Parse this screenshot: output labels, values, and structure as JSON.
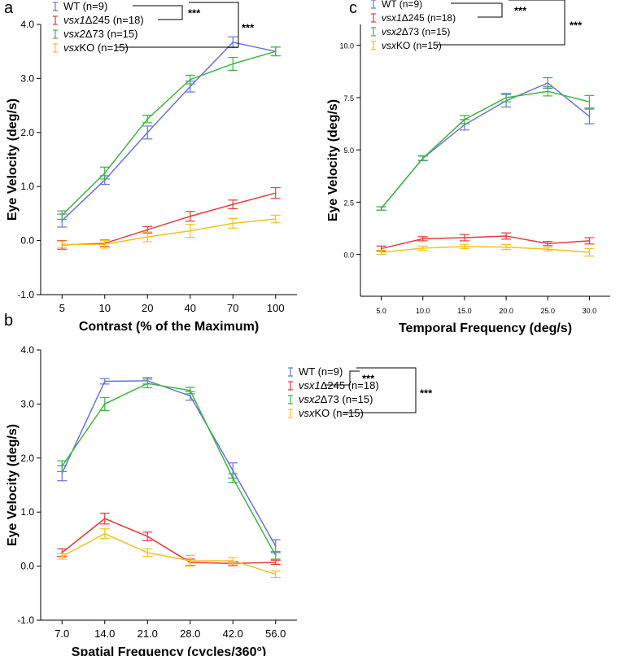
{
  "colors": {
    "WT": "#6673e0",
    "vsx1": "#e53b3b",
    "vsx2": "#3fb53f",
    "vsxKO": "#f3c21f"
  },
  "legend": {
    "items": [
      {
        "key": "WT",
        "prefix": "",
        "italic": "",
        "suffix": "WT (n=9)"
      },
      {
        "key": "vsx1",
        "prefix": "",
        "italic": "vsx1",
        "suffix": "Δ245 (n=18)"
      },
      {
        "key": "vsx2",
        "prefix": "",
        "italic": "vsx2",
        "suffix": "Δ73 (n=15)"
      },
      {
        "key": "vsxKO",
        "prefix": "",
        "italic": "vsx",
        "suffix": "KO (n=15)"
      }
    ],
    "significance": "***"
  },
  "chart_data": [
    {
      "panel": "a",
      "type": "line",
      "xlabel": "Contrast (% of the Maximum)",
      "ylabel": "Eye Velocity (deg/s)",
      "categories": [
        "5",
        "10",
        "20",
        "40",
        "70",
        "100"
      ],
      "yticks": [
        "-1.0",
        "0.0",
        "1.0",
        "2.0",
        "3.0",
        "4.0"
      ],
      "ylim": [
        -1.0,
        4.0
      ],
      "grid": false,
      "legend_position": "top-left",
      "series": [
        {
          "name": "WT",
          "values": [
            0.37,
            1.12,
            2.0,
            2.85,
            3.67,
            3.5
          ],
          "err": [
            0.12,
            0.08,
            0.12,
            0.1,
            0.1,
            0.08
          ]
        },
        {
          "name": "vsx1Δ245",
          "values": [
            -0.08,
            -0.05,
            0.2,
            0.45,
            0.67,
            0.88
          ],
          "err": [
            0.08,
            0.06,
            0.06,
            0.09,
            0.08,
            0.1
          ]
        },
        {
          "name": "vsx2Δ73",
          "values": [
            0.47,
            1.25,
            2.25,
            2.98,
            3.27,
            3.5
          ],
          "err": [
            0.08,
            0.11,
            0.07,
            0.08,
            0.12,
            0.08
          ]
        },
        {
          "name": "vsxKO",
          "values": [
            -0.07,
            -0.07,
            0.07,
            0.18,
            0.32,
            0.4
          ],
          "err": [
            0.06,
            0.07,
            0.09,
            0.12,
            0.09,
            0.07
          ]
        }
      ]
    },
    {
      "panel": "b",
      "type": "line",
      "xlabel": "Spatial Frequency (cycles/360°)",
      "ylabel": "Eye Velocity (deg/s)",
      "categories": [
        "7.0",
        "14.0",
        "21.0",
        "28.0",
        "42.0",
        "56.0"
      ],
      "yticks": [
        "-1.0",
        "0.0",
        "1.0",
        "2.0",
        "3.0",
        "4.0"
      ],
      "ylim": [
        -1.0,
        4.0
      ],
      "grid": false,
      "legend_position": "top-right",
      "series": [
        {
          "name": "WT",
          "values": [
            1.72,
            3.42,
            3.43,
            3.15,
            1.77,
            0.37
          ],
          "err": [
            0.14,
            0.05,
            0.06,
            0.08,
            0.14,
            0.12
          ]
        },
        {
          "name": "vsx1Δ245",
          "values": [
            0.25,
            0.88,
            0.55,
            0.07,
            0.05,
            0.07
          ],
          "err": [
            0.07,
            0.1,
            0.08,
            0.06,
            0.04,
            0.04
          ]
        },
        {
          "name": "vsx2Δ73",
          "values": [
            1.85,
            3.0,
            3.38,
            3.25,
            1.63,
            0.2
          ],
          "err": [
            0.1,
            0.12,
            0.08,
            0.06,
            0.08,
            0.07
          ]
        },
        {
          "name": "vsxKO",
          "values": [
            0.18,
            0.6,
            0.25,
            0.1,
            0.1,
            -0.15
          ],
          "err": [
            0.05,
            0.09,
            0.07,
            0.1,
            0.06,
            0.06
          ]
        }
      ]
    },
    {
      "panel": "c",
      "type": "line",
      "xlabel": "Temporal Frequency (deg/s)",
      "ylabel": "Eye Velocity (deg/s)",
      "categories": [
        "5.0",
        "10.0",
        "15.0",
        "20.0",
        "25.0",
        "30.0"
      ],
      "yticks": [
        "0.0",
        "2.5",
        "5.0",
        "7.5",
        "10.0"
      ],
      "ylim": [
        -2.0,
        11.0
      ],
      "grid": false,
      "legend_position": "top-left",
      "series": [
        {
          "name": "WT",
          "values": [
            2.2,
            4.6,
            6.2,
            7.35,
            8.2,
            6.6
          ],
          "err": [
            0.08,
            0.12,
            0.25,
            0.3,
            0.25,
            0.35
          ]
        },
        {
          "name": "vsx1Δ245",
          "values": [
            0.28,
            0.75,
            0.8,
            0.88,
            0.52,
            0.65
          ],
          "err": [
            0.12,
            0.1,
            0.15,
            0.15,
            0.1,
            0.15
          ]
        },
        {
          "name": "vsx2Δ73",
          "values": [
            2.2,
            4.6,
            6.45,
            7.5,
            7.8,
            7.3
          ],
          "err": [
            0.08,
            0.1,
            0.2,
            0.2,
            0.22,
            0.3
          ]
        },
        {
          "name": "vsxKO",
          "values": [
            0.1,
            0.3,
            0.38,
            0.35,
            0.25,
            0.1
          ],
          "err": [
            0.1,
            0.1,
            0.1,
            0.12,
            0.08,
            0.18
          ]
        }
      ]
    }
  ]
}
